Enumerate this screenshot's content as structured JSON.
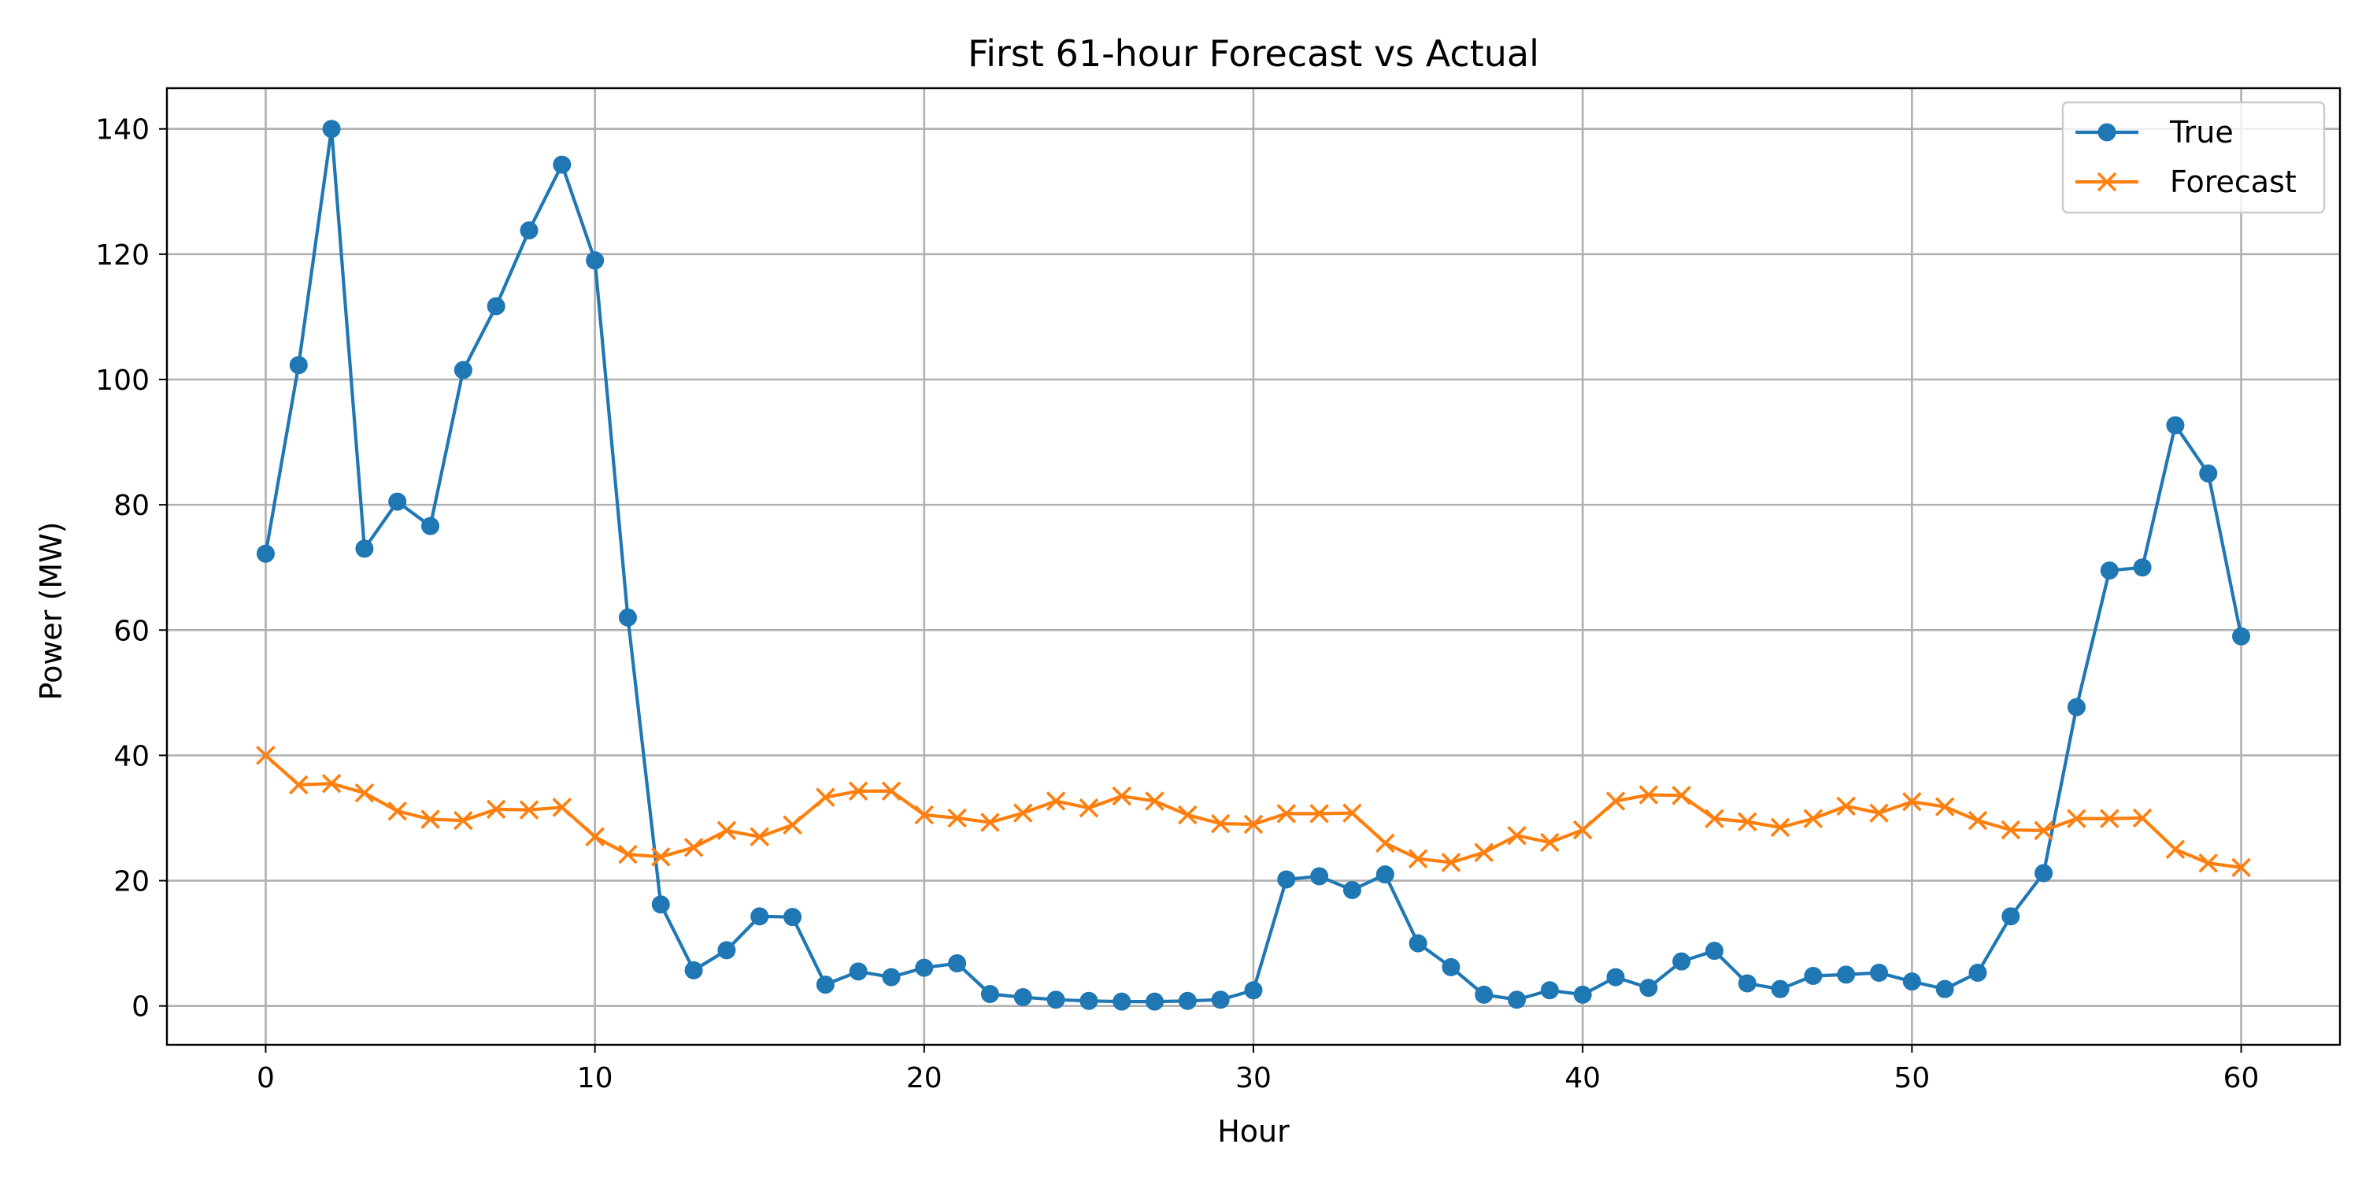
{
  "chart_data": {
    "type": "line",
    "title": "First 61-hour Forecast vs Actual",
    "xlabel": "Hour",
    "ylabel": "Power (MW)",
    "xlim": [
      -3,
      63
    ],
    "ylim": [
      -6.2,
      146.5
    ],
    "xticks": [
      0,
      10,
      20,
      30,
      40,
      50,
      60
    ],
    "yticks": [
      0,
      20,
      40,
      60,
      80,
      100,
      120,
      140
    ],
    "grid": true,
    "legend_position": "top-right",
    "x": [
      0,
      1,
      2,
      3,
      4,
      5,
      6,
      7,
      8,
      9,
      10,
      11,
      12,
      13,
      14,
      15,
      16,
      17,
      18,
      19,
      20,
      21,
      22,
      23,
      24,
      25,
      26,
      27,
      28,
      29,
      30,
      31,
      32,
      33,
      34,
      35,
      36,
      37,
      38,
      39,
      40,
      41,
      42,
      43,
      44,
      45,
      46,
      47,
      48,
      49,
      50,
      51,
      52,
      53,
      54,
      55,
      56,
      57,
      58,
      59,
      60
    ],
    "series": [
      {
        "name": "True",
        "color": "#1f77b4",
        "marker": "circle",
        "values": [
          72.2,
          102.3,
          140.0,
          73.0,
          80.5,
          76.6,
          101.5,
          111.7,
          123.8,
          134.3,
          119.0,
          62.0,
          16.2,
          5.7,
          8.9,
          14.3,
          14.2,
          3.4,
          5.5,
          4.6,
          6.1,
          6.8,
          1.9,
          1.4,
          1.0,
          0.8,
          0.7,
          0.7,
          0.8,
          1.0,
          2.5,
          20.2,
          20.7,
          18.5,
          21.0,
          10.0,
          6.2,
          1.8,
          1.0,
          2.5,
          1.8,
          4.6,
          2.9,
          7.1,
          8.8,
          3.6,
          2.7,
          4.8,
          5.0,
          5.3,
          3.9,
          2.7,
          5.3,
          14.3,
          21.2,
          47.7,
          69.5,
          70.0,
          92.7,
          85.0,
          59.0
        ]
      },
      {
        "name": "Forecast",
        "color": "#ff7f0e",
        "marker": "x",
        "values": [
          40.0,
          35.3,
          35.5,
          34.0,
          31.1,
          29.8,
          29.6,
          31.4,
          31.3,
          31.7,
          27.0,
          24.2,
          23.8,
          25.3,
          28.0,
          27.0,
          28.9,
          33.3,
          34.3,
          34.3,
          30.5,
          30.0,
          29.3,
          30.8,
          32.7,
          31.6,
          33.5,
          32.7,
          30.5,
          29.1,
          29.0,
          30.7,
          30.7,
          30.8,
          26.0,
          23.5,
          22.9,
          24.5,
          27.2,
          26.1,
          28.1,
          32.7,
          33.7,
          33.6,
          29.9,
          29.4,
          28.5,
          29.9,
          31.9,
          30.8,
          32.6,
          31.8,
          29.6,
          28.1,
          28.0,
          29.9,
          29.9,
          30.0,
          25.0,
          22.8,
          22.1
        ]
      }
    ]
  }
}
